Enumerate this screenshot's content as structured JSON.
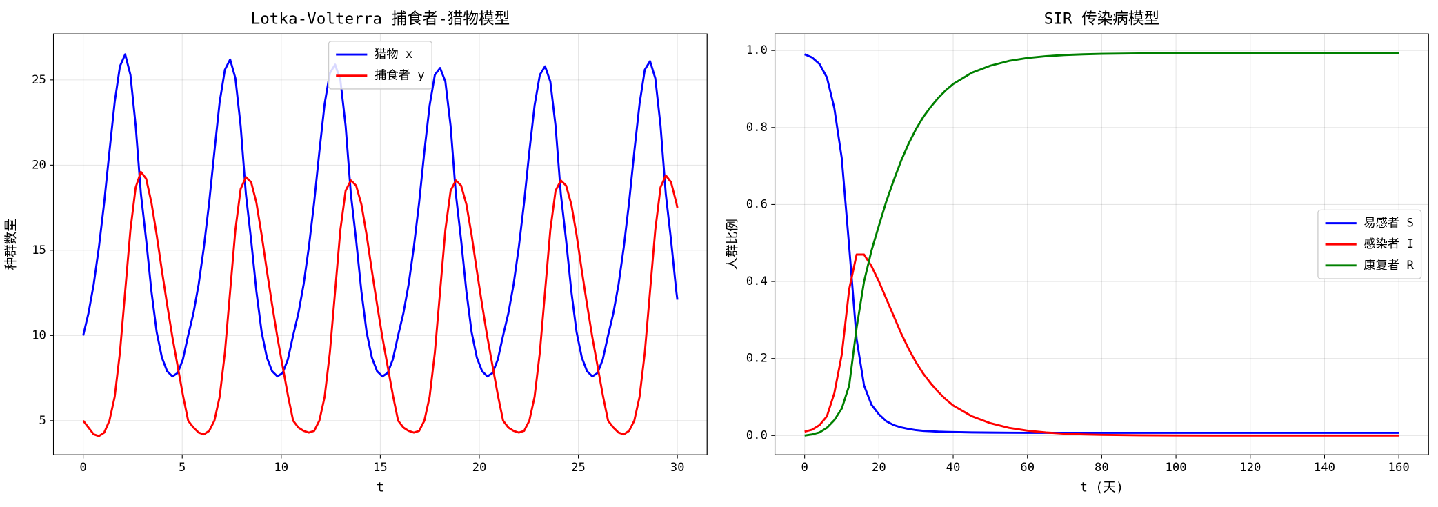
{
  "chart_data": [
    {
      "type": "line",
      "title": "Lotka-Volterra 捕食者-猎物模型",
      "xlabel": "t",
      "ylabel": "种群数量",
      "x": [
        0,
        0.265,
        0.53,
        0.795,
        1.06,
        1.325,
        1.59,
        1.855,
        2.12,
        2.385,
        2.65,
        2.915,
        3.18,
        3.445,
        3.71,
        3.975,
        4.24,
        4.505,
        4.77,
        5.035,
        5.3,
        5.565,
        5.83,
        6.095,
        6.36,
        6.625,
        6.89,
        7.155,
        7.42,
        7.685,
        7.95,
        8.215,
        8.48,
        8.745,
        9.01,
        9.275,
        9.54,
        9.805,
        10.07,
        10.335,
        10.6,
        10.865,
        11.13,
        11.395,
        11.66,
        11.925,
        12.19,
        12.455,
        12.72,
        12.985,
        13.25,
        13.515,
        13.78,
        14.045,
        14.31,
        14.575,
        14.84,
        15.105,
        15.37,
        15.635,
        15.9,
        16.165,
        16.43,
        16.695,
        16.96,
        17.225,
        17.49,
        17.755,
        18.02,
        18.285,
        18.55,
        18.815,
        19.08,
        19.345,
        19.61,
        19.875,
        20.14,
        20.405,
        20.67,
        20.935,
        21.2,
        21.465,
        21.73,
        21.995,
        22.26,
        22.525,
        22.79,
        23.055,
        23.32,
        23.585,
        23.85,
        24.115,
        24.38,
        24.645,
        24.91,
        25.175,
        25.44,
        25.705,
        25.97,
        26.235,
        26.5,
        26.765,
        27.03,
        27.295,
        27.56,
        27.825,
        28.09,
        28.355,
        28.62,
        28.885,
        29.15,
        29.415,
        29.68,
        29.945,
        30
      ],
      "series": [
        {
          "name": "猎物 x",
          "color": "#0000ff",
          "values": [
            10,
            11.3,
            13.0,
            15.2,
            17.8,
            20.8,
            23.7,
            25.8,
            26.5,
            25.3,
            22.3,
            18.3,
            15.6,
            12.6,
            10.2,
            8.7,
            7.9,
            7.6,
            7.8,
            8.6,
            10,
            11.3,
            13.0,
            15.2,
            17.8,
            20.8,
            23.7,
            25.6,
            26.2,
            25.1,
            22.3,
            18.3,
            15.6,
            12.6,
            10.2,
            8.7,
            7.9,
            7.6,
            7.8,
            8.6,
            10,
            11.3,
            13.0,
            15.2,
            17.8,
            20.8,
            23.6,
            25.4,
            25.9,
            25.0,
            22.3,
            18.3,
            15.6,
            12.6,
            10.2,
            8.7,
            7.9,
            7.6,
            7.8,
            8.6,
            10,
            11.3,
            13.0,
            15.2,
            17.8,
            20.8,
            23.5,
            25.3,
            25.7,
            24.9,
            22.3,
            18.3,
            15.6,
            12.6,
            10.2,
            8.7,
            7.9,
            7.6,
            7.8,
            8.6,
            10,
            11.3,
            13.0,
            15.2,
            17.8,
            20.8,
            23.5,
            25.3,
            25.8,
            24.9,
            22.3,
            18.3,
            15.6,
            12.6,
            10.2,
            8.7,
            7.9,
            7.6,
            7.8,
            8.6,
            10,
            11.3,
            13.0,
            15.2,
            17.8,
            20.8,
            23.6,
            25.6,
            26.1,
            25.1,
            22.3,
            18.3,
            15.6,
            12.6,
            12.1
          ]
        },
        {
          "name": "捕食者 y",
          "color": "#ff0000",
          "values": [
            5.0,
            4.6,
            4.2,
            4.1,
            4.3,
            5.0,
            6.4,
            9.0,
            12.6,
            16.2,
            18.7,
            19.6,
            19.2,
            17.8,
            15.9,
            13.8,
            11.8,
            9.9,
            8.2,
            6.5,
            5.0,
            4.6,
            4.3,
            4.2,
            4.4,
            5.0,
            6.4,
            9.0,
            12.6,
            16.2,
            18.6,
            19.3,
            19.0,
            17.8,
            15.9,
            13.8,
            11.8,
            9.9,
            8.2,
            6.5,
            5.0,
            4.6,
            4.4,
            4.3,
            4.4,
            5.0,
            6.4,
            9.0,
            12.6,
            16.2,
            18.5,
            19.1,
            18.8,
            17.7,
            15.9,
            13.8,
            11.8,
            9.9,
            8.2,
            6.5,
            5.0,
            4.6,
            4.4,
            4.3,
            4.4,
            5.0,
            6.4,
            9.0,
            12.6,
            16.2,
            18.5,
            19.1,
            18.8,
            17.7,
            15.9,
            13.8,
            11.8,
            9.9,
            8.2,
            6.5,
            5.0,
            4.6,
            4.4,
            4.3,
            4.4,
            5.0,
            6.4,
            9.0,
            12.6,
            16.2,
            18.5,
            19.1,
            18.8,
            17.7,
            15.9,
            13.8,
            11.8,
            9.9,
            8.2,
            6.5,
            5.0,
            4.6,
            4.3,
            4.2,
            4.4,
            5.0,
            6.4,
            9.0,
            12.6,
            16.2,
            18.7,
            19.4,
            19.0,
            17.8,
            17.5
          ]
        }
      ],
      "xlim": [
        -1.5,
        31.5
      ],
      "ylim": [
        3.0,
        27.7
      ],
      "xticks": [
        0,
        5,
        10,
        15,
        20,
        25,
        30
      ],
      "yticks": [
        5,
        10,
        15,
        20,
        25
      ],
      "grid": true,
      "legend": "upper center"
    },
    {
      "type": "line",
      "title": "SIR 传染病模型",
      "xlabel": "t (天)",
      "ylabel": "人群比例",
      "x": [
        0,
        2,
        4,
        6,
        8,
        10,
        12,
        14,
        16,
        18,
        20,
        22,
        24,
        26,
        28,
        30,
        32,
        34,
        36,
        38,
        40,
        45,
        50,
        55,
        60,
        65,
        70,
        75,
        80,
        90,
        100,
        110,
        120,
        130,
        140,
        150,
        160
      ],
      "series": [
        {
          "name": "易感者 S",
          "color": "#0000ff",
          "values": [
            0.99,
            0.982,
            0.965,
            0.93,
            0.85,
            0.72,
            0.49,
            0.25,
            0.13,
            0.08,
            0.055,
            0.037,
            0.027,
            0.021,
            0.017,
            0.014,
            0.012,
            0.011,
            0.01,
            0.0095,
            0.009,
            0.008,
            0.0075,
            0.0072,
            0.007,
            0.007,
            0.007,
            0.007,
            0.007,
            0.007,
            0.007,
            0.007,
            0.007,
            0.007,
            0.007,
            0.007,
            0.007
          ]
        },
        {
          "name": "感染者 I",
          "color": "#ff0000",
          "values": [
            0.01,
            0.015,
            0.027,
            0.05,
            0.11,
            0.21,
            0.38,
            0.47,
            0.47,
            0.44,
            0.4,
            0.355,
            0.31,
            0.265,
            0.225,
            0.19,
            0.16,
            0.135,
            0.113,
            0.094,
            0.078,
            0.05,
            0.032,
            0.02,
            0.0125,
            0.0078,
            0.0048,
            0.003,
            0.0018,
            0.0007,
            0.0003,
            0.0001,
            0,
            0,
            0,
            0,
            0
          ]
        },
        {
          "name": "康复者 R",
          "color": "#008000",
          "values": [
            0,
            0.003,
            0.008,
            0.02,
            0.04,
            0.07,
            0.13,
            0.28,
            0.4,
            0.48,
            0.545,
            0.608,
            0.663,
            0.714,
            0.758,
            0.796,
            0.828,
            0.854,
            0.877,
            0.8965,
            0.913,
            0.942,
            0.9605,
            0.9728,
            0.9805,
            0.9852,
            0.9882,
            0.99,
            0.9912,
            0.9923,
            0.9927,
            0.9929,
            0.993,
            0.993,
            0.993,
            0.993,
            0.993
          ]
        }
      ],
      "xlim": [
        -8,
        168
      ],
      "ylim": [
        -0.05,
        1.043
      ],
      "xticks": [
        0,
        20,
        40,
        60,
        80,
        100,
        120,
        140,
        160
      ],
      "yticks": [
        {
          "value": 0,
          "label": "0.0"
        },
        0.2,
        0.4,
        0.6,
        0.8,
        {
          "value": 1,
          "label": "1.0"
        }
      ],
      "grid": true,
      "legend": "center right"
    }
  ]
}
